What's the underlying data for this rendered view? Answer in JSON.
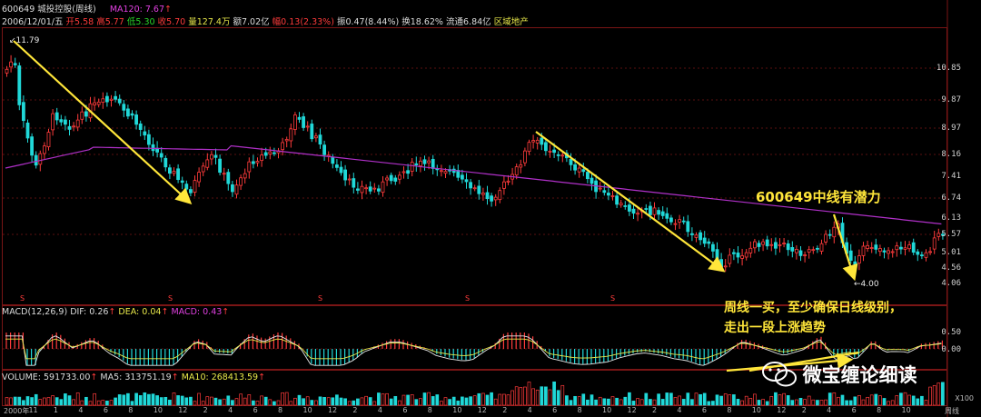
{
  "header": {
    "code_name": "600649 城投控股(周线)",
    "ma120_label": "MA120: 7.67",
    "ma_arrow": "↑",
    "date": "2006/12/01/五",
    "open": "开5.58",
    "high": "高5.77",
    "low": "低5.30",
    "close": "收5.70",
    "volume": "量127.4万",
    "amount": "额7.02亿",
    "amplitude_change": "幅0.13(2.33%)",
    "swing": "振0.47(8.44%)",
    "turnover": "换18.62%",
    "float_cap": "流通6.84亿",
    "sector": "区域地产"
  },
  "price_axis": [
    "10.85",
    "9.87",
    "8.97",
    "8.16",
    "7.41",
    "6.74",
    "6.13",
    "5.57",
    "5.01",
    "4.56",
    "4.06"
  ],
  "markers": {
    "high": "11.79",
    "low": "4.00"
  },
  "macd_header": {
    "name": "MACD(12,26,9)",
    "dif": "DIF: 0.26",
    "dea": "DEA: 0.04",
    "macd": "MACD: 0.43",
    "arrow": "↑"
  },
  "macd_axis": [
    "0.50",
    "0.00"
  ],
  "volume_header": {
    "vol": "VOLUME: 591733.00",
    "ma5": "MA5: 313751.19",
    "ma10": "MA10: 268413.59",
    "arrow": "↑"
  },
  "volume_unit": "X100",
  "x_axis": [
    "2000年",
    "11",
    "1",
    "4",
    "6",
    "8",
    "10",
    "12",
    "2",
    "4",
    "6",
    "8",
    "10",
    "12",
    "2",
    "4",
    "6",
    "8",
    "10",
    "12",
    "2",
    "4",
    "6",
    "8",
    "10",
    "12",
    "2",
    "4",
    "6",
    "8",
    "10",
    "12",
    "2",
    "4",
    "6",
    "8",
    "10",
    "周线"
  ],
  "annotations": {
    "potential": "600649中线有潜力",
    "buy_line1": "周线一买，至少确保日线级别，",
    "buy_line2": "走出一段上涨趋势"
  },
  "watermark": "微宝缠论细读",
  "colors": {
    "up": "#ff3b3b",
    "down": "#20d8d8",
    "ma": "#b030c8",
    "arrow": "#ffe63a"
  }
}
